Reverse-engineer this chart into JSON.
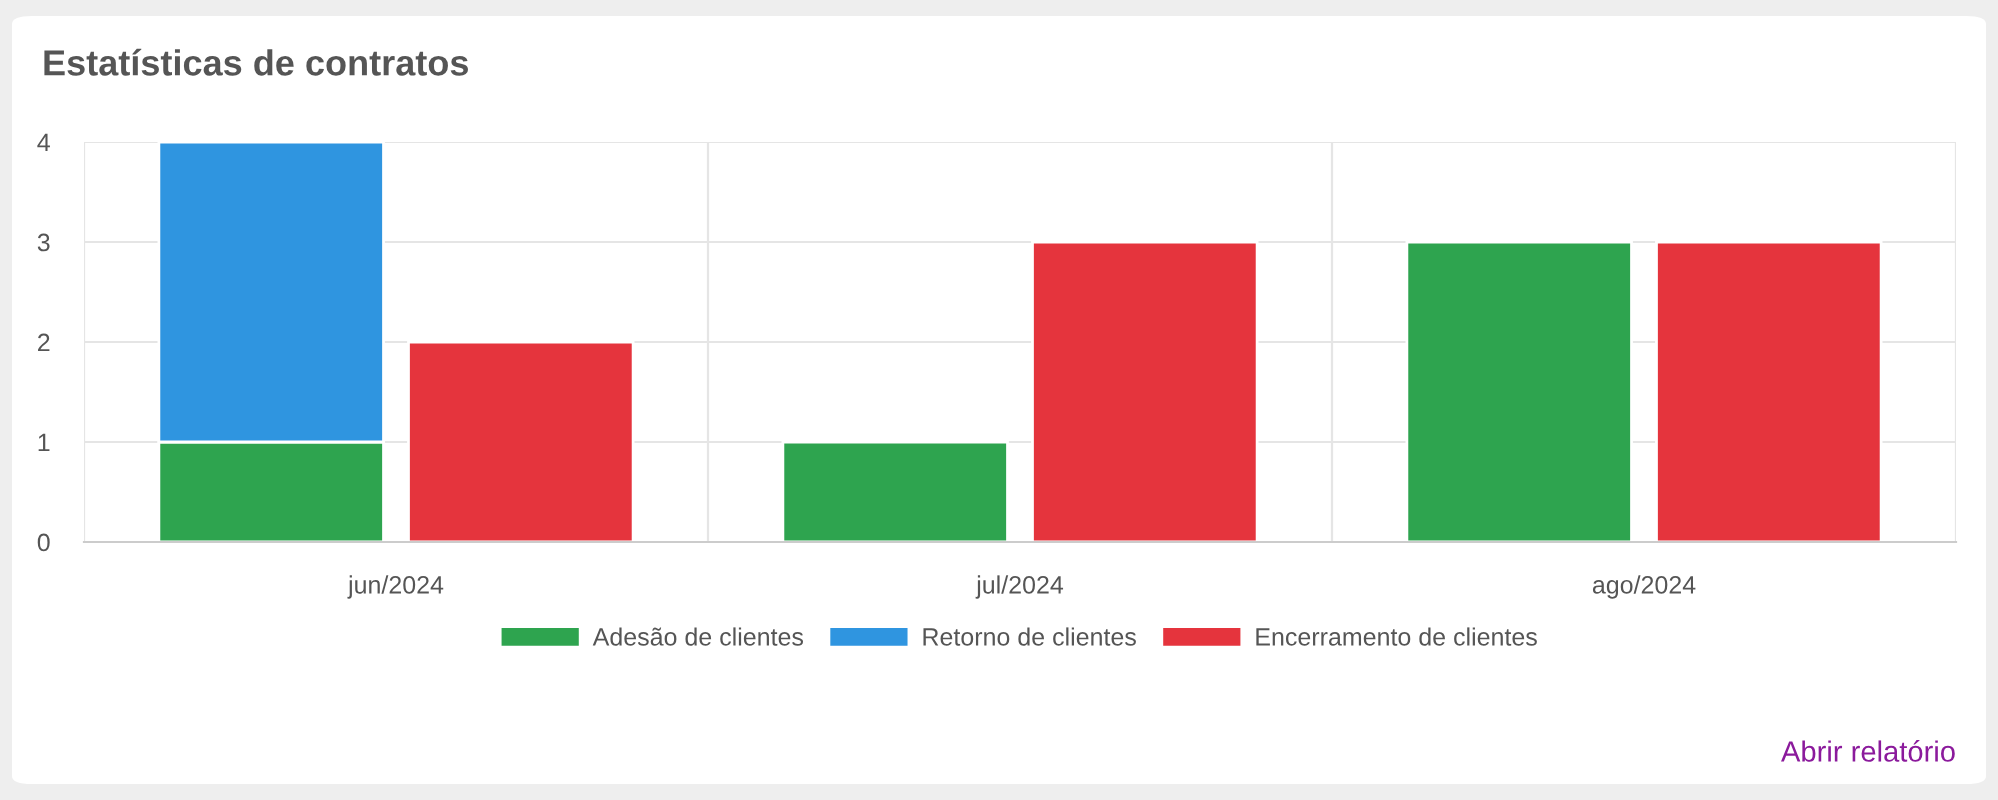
{
  "chart_data": {
    "type": "bar",
    "title": "Estatísticas de contratos",
    "categories": [
      "jun/2024",
      "jul/2024",
      "ago/2024"
    ],
    "series": [
      {
        "name": "Adesão de clientes",
        "color": "#2ea44f",
        "values": [
          1,
          1,
          3
        ]
      },
      {
        "name": "Retorno de clientes",
        "color": "#2f95e0",
        "values": [
          3,
          null,
          null
        ],
        "base": [
          1,
          null,
          null
        ]
      },
      {
        "name": "Encerramento de clientes",
        "color": "#e5343d",
        "values": [
          2,
          3,
          3
        ]
      }
    ],
    "ylim": [
      0,
      4
    ],
    "yticks": [
      0,
      1,
      2,
      3,
      4
    ],
    "grid": true,
    "legend": "bottom",
    "annotations": [
      "Abrir relatório"
    ]
  }
}
